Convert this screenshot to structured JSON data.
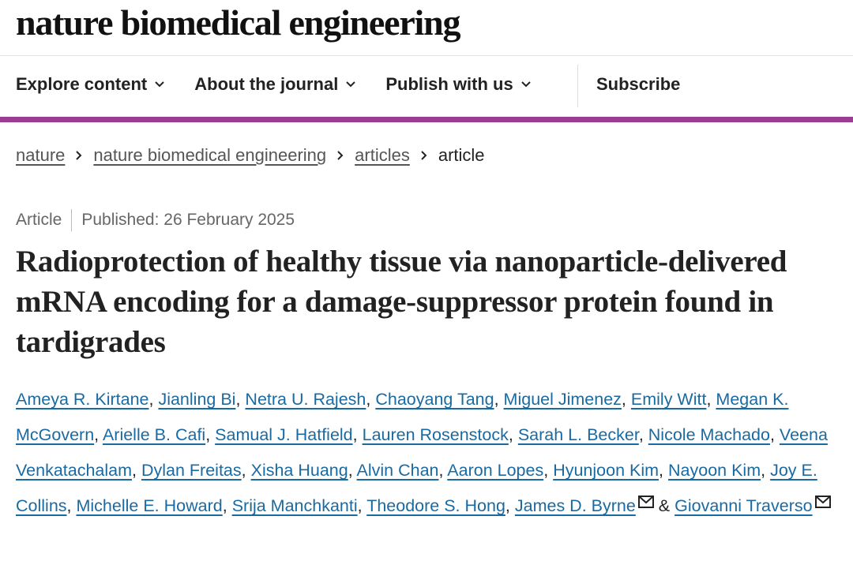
{
  "header": {
    "title": "nature biomedical engineering"
  },
  "nav": {
    "items": [
      "Explore content",
      "About the journal",
      "Publish with us"
    ],
    "subscribe": "Subscribe"
  },
  "breadcrumbs": {
    "links": [
      "nature",
      "nature biomedical engineering",
      "articles"
    ],
    "current": "article"
  },
  "article": {
    "type": "Article",
    "published": "Published: 26 February 2025",
    "title": "Radioprotection of healthy tissue via nanoparticle-delivered mRNA encoding for a damage-suppressor protein found in tardigrades",
    "separator": ",",
    "conjunction": "&",
    "authors": [
      {
        "name": "Ameya R. Kirtane"
      },
      {
        "name": "Jianling Bi"
      },
      {
        "name": "Netra U. Rajesh"
      },
      {
        "name": "Chaoyang Tang"
      },
      {
        "name": "Miguel Jimenez"
      },
      {
        "name": "Emily Witt"
      },
      {
        "name": "Megan K. McGovern"
      },
      {
        "name": "Arielle B. Cafi"
      },
      {
        "name": "Samual J. Hatfield"
      },
      {
        "name": "Lauren Rosenstock"
      },
      {
        "name": "Sarah L. Becker"
      },
      {
        "name": "Nicole Machado"
      },
      {
        "name": "Veena Venkatachalam"
      },
      {
        "name": "Dylan Freitas"
      },
      {
        "name": "Xisha Huang"
      },
      {
        "name": "Alvin Chan"
      },
      {
        "name": "Aaron Lopes"
      },
      {
        "name": "Hyunjoon Kim"
      },
      {
        "name": "Nayoon Kim"
      },
      {
        "name": "Joy E. Collins"
      },
      {
        "name": "Michelle E. Howard"
      },
      {
        "name": "Srija Manchkanti"
      },
      {
        "name": "Theodore S. Hong"
      },
      {
        "name": "James D. Byrne",
        "corresponding": true
      },
      {
        "name": "Giovanni Traverso",
        "corresponding": true
      }
    ]
  }
}
